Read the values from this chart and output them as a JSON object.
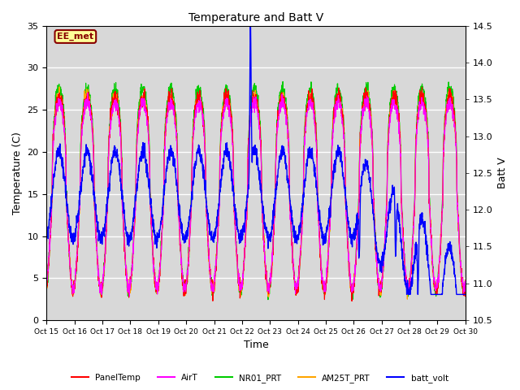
{
  "title": "Temperature and Batt V",
  "xlabel": "Time",
  "ylabel_left": "Temperature (C)",
  "ylabel_right": "Batt V",
  "ylim_left": [
    0,
    35
  ],
  "ylim_right": [
    10.5,
    14.5
  ],
  "xtick_labels": [
    "Oct 15",
    "Oct 16",
    "Oct 17",
    "Oct 18",
    "Oct 19",
    "Oct 20",
    "Oct 21",
    "Oct 22",
    "Oct 23",
    "Oct 24",
    "Oct 25",
    "Oct 26",
    "Oct 27",
    "Oct 28",
    "Oct 29",
    "Oct 30"
  ],
  "yticks_left": [
    0,
    5,
    10,
    15,
    20,
    25,
    30,
    35
  ],
  "yticks_right": [
    10.5,
    11.0,
    11.5,
    12.0,
    12.5,
    13.0,
    13.5,
    14.0,
    14.5
  ],
  "legend_labels": [
    "PanelTemp",
    "AirT",
    "NR01_PRT",
    "AM25T_PRT",
    "batt_volt"
  ],
  "legend_colors": [
    "#ff0000",
    "#ff00ff",
    "#00cc00",
    "#ffa500",
    "#0000ff"
  ],
  "plot_bg_color": "#d8d8d8",
  "grid_color": "#ffffff",
  "annotation_text": "EE_met",
  "annotation_box_color": "#ffff99",
  "annotation_border_color": "#880000",
  "n_days": 15,
  "n_points_per_day": 144
}
